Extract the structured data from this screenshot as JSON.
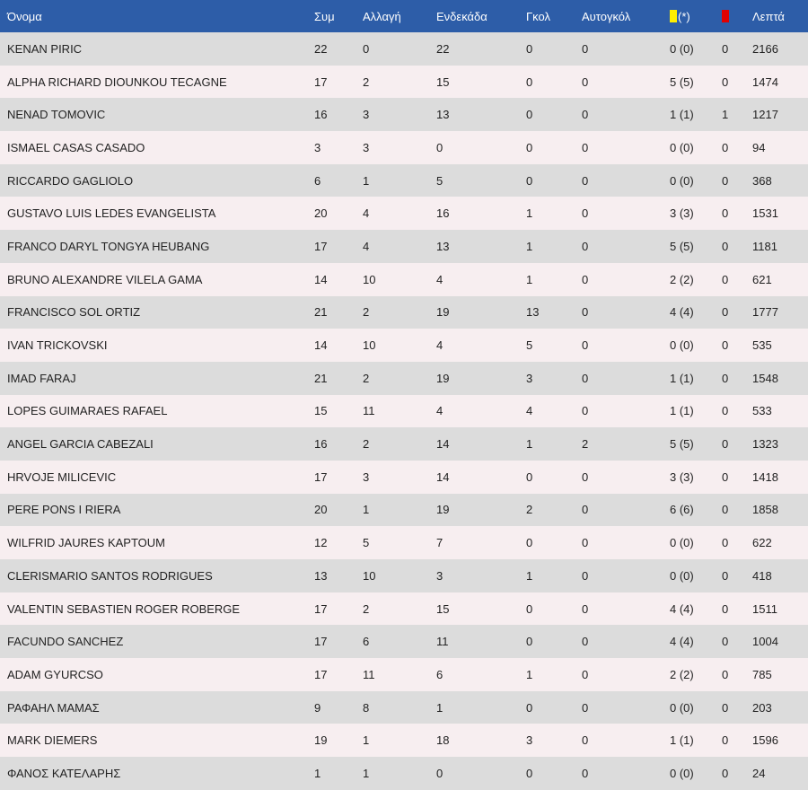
{
  "colors": {
    "header_bg": "#2d5da8",
    "row_odd": "#dcdcdc",
    "row_even": "#f7eef0",
    "yellow_card": "#ffee00",
    "red_card": "#e00000"
  },
  "header": {
    "name": "Όνομα",
    "apps": "Συμ",
    "subs": "Αλλαγή",
    "starts": "Ενδεκάδα",
    "goals": "Γκολ",
    "own_goals": "Αυτογκόλ",
    "yellow_icon": "yellow-card-icon",
    "yellow_suffix": "(*)",
    "red_icon": "red-card-icon",
    "minutes": "Λεπτά"
  },
  "rows": [
    {
      "name": "KENAN PIRIC",
      "apps": "22",
      "subs": "0",
      "starts": "22",
      "goals": "0",
      "own_goals": "0",
      "yellow": "0 (0)",
      "red": "0",
      "minutes": "2166"
    },
    {
      "name": "ALPHA RICHARD DIOUNKOU TECAGNE",
      "apps": "17",
      "subs": "2",
      "starts": "15",
      "goals": "0",
      "own_goals": "0",
      "yellow": "5 (5)",
      "red": "0",
      "minutes": "1474"
    },
    {
      "name": "NENAD TOMOVIC",
      "apps": "16",
      "subs": "3",
      "starts": "13",
      "goals": "0",
      "own_goals": "0",
      "yellow": "1 (1)",
      "red": "1",
      "minutes": "1217"
    },
    {
      "name": "ISMAEL CASAS CASADO",
      "apps": "3",
      "subs": "3",
      "starts": "0",
      "goals": "0",
      "own_goals": "0",
      "yellow": "0 (0)",
      "red": "0",
      "minutes": "94"
    },
    {
      "name": "RICCARDO GAGLIOLO",
      "apps": "6",
      "subs": "1",
      "starts": "5",
      "goals": "0",
      "own_goals": "0",
      "yellow": "0 (0)",
      "red": "0",
      "minutes": "368"
    },
    {
      "name": "GUSTAVO LUIS LEDES EVANGELISTA",
      "apps": "20",
      "subs": "4",
      "starts": "16",
      "goals": "1",
      "own_goals": "0",
      "yellow": "3 (3)",
      "red": "0",
      "minutes": "1531"
    },
    {
      "name": "FRANCO DARYL TONGYA HEUBANG",
      "apps": "17",
      "subs": "4",
      "starts": "13",
      "goals": "1",
      "own_goals": "0",
      "yellow": "5 (5)",
      "red": "0",
      "minutes": "1181"
    },
    {
      "name": "BRUNO ALEXANDRE VILELA GAMA",
      "apps": "14",
      "subs": "10",
      "starts": "4",
      "goals": "1",
      "own_goals": "0",
      "yellow": "2 (2)",
      "red": "0",
      "minutes": "621"
    },
    {
      "name": "FRANCISCO SOL ORTIZ",
      "apps": "21",
      "subs": "2",
      "starts": "19",
      "goals": "13",
      "own_goals": "0",
      "yellow": "4 (4)",
      "red": "0",
      "minutes": "1777"
    },
    {
      "name": "IVAN TRICKOVSKI",
      "apps": "14",
      "subs": "10",
      "starts": "4",
      "goals": "5",
      "own_goals": "0",
      "yellow": "0 (0)",
      "red": "0",
      "minutes": "535"
    },
    {
      "name": "IMAD FARAJ",
      "apps": "21",
      "subs": "2",
      "starts": "19",
      "goals": "3",
      "own_goals": "0",
      "yellow": "1 (1)",
      "red": "0",
      "minutes": "1548"
    },
    {
      "name": "LOPES GUIMARAES RAFAEL",
      "apps": "15",
      "subs": "11",
      "starts": "4",
      "goals": "4",
      "own_goals": "0",
      "yellow": "1 (1)",
      "red": "0",
      "minutes": "533"
    },
    {
      "name": "ANGEL GARCIA CABEZALI",
      "apps": "16",
      "subs": "2",
      "starts": "14",
      "goals": "1",
      "own_goals": "2",
      "yellow": "5 (5)",
      "red": "0",
      "minutes": "1323"
    },
    {
      "name": "HRVOJE MILICEVIC",
      "apps": "17",
      "subs": "3",
      "starts": "14",
      "goals": "0",
      "own_goals": "0",
      "yellow": "3 (3)",
      "red": "0",
      "minutes": "1418"
    },
    {
      "name": "PERE PONS I RIERA",
      "apps": "20",
      "subs": "1",
      "starts": "19",
      "goals": "2",
      "own_goals": "0",
      "yellow": "6 (6)",
      "red": "0",
      "minutes": "1858"
    },
    {
      "name": "WILFRID JAURES KAPTOUM",
      "apps": "12",
      "subs": "5",
      "starts": "7",
      "goals": "0",
      "own_goals": "0",
      "yellow": "0 (0)",
      "red": "0",
      "minutes": "622"
    },
    {
      "name": "CLERISMARIO SANTOS RODRIGUES",
      "apps": "13",
      "subs": "10",
      "starts": "3",
      "goals": "1",
      "own_goals": "0",
      "yellow": "0 (0)",
      "red": "0",
      "minutes": "418"
    },
    {
      "name": "VALENTIN SEBASTIEN ROGER ROBERGE",
      "apps": "17",
      "subs": "2",
      "starts": "15",
      "goals": "0",
      "own_goals": "0",
      "yellow": "4 (4)",
      "red": "0",
      "minutes": "1511"
    },
    {
      "name": "FACUNDO SANCHEZ",
      "apps": "17",
      "subs": "6",
      "starts": "11",
      "goals": "0",
      "own_goals": "0",
      "yellow": "4 (4)",
      "red": "0",
      "minutes": "1004"
    },
    {
      "name": "ADAM GYURCSO",
      "apps": "17",
      "subs": "11",
      "starts": "6",
      "goals": "1",
      "own_goals": "0",
      "yellow": "2 (2)",
      "red": "0",
      "minutes": "785"
    },
    {
      "name": "ΡΑΦΑΗΛ ΜΑΜΑΣ",
      "apps": "9",
      "subs": "8",
      "starts": "1",
      "goals": "0",
      "own_goals": "0",
      "yellow": "0 (0)",
      "red": "0",
      "minutes": "203"
    },
    {
      "name": "MARK DIEMERS",
      "apps": "19",
      "subs": "1",
      "starts": "18",
      "goals": "3",
      "own_goals": "0",
      "yellow": "1 (1)",
      "red": "0",
      "minutes": "1596"
    },
    {
      "name": "ΦΑΝΟΣ ΚΑΤΕΛΑΡΗΣ",
      "apps": "1",
      "subs": "1",
      "starts": "0",
      "goals": "0",
      "own_goals": "0",
      "yellow": "0 (0)",
      "red": "0",
      "minutes": "24"
    }
  ]
}
